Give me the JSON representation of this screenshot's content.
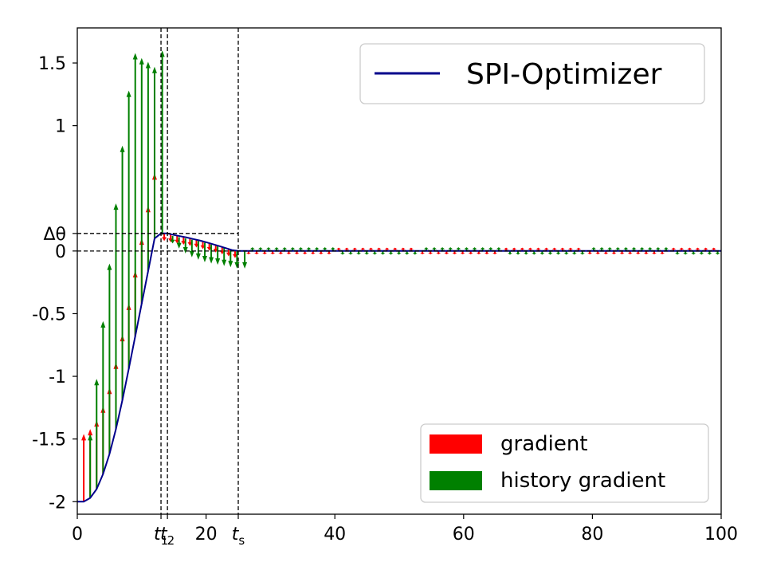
{
  "chart_data": {
    "type": "line",
    "title": "",
    "xlabel": "",
    "ylabel": "",
    "xlim": [
      0,
      100
    ],
    "ylim": [
      -2.1,
      1.78
    ],
    "x_ticks": [
      {
        "value": 0,
        "label": "0",
        "math": false
      },
      {
        "value": 13.0,
        "label": "t",
        "sub": "1",
        "math": true
      },
      {
        "value": 14.0,
        "label": "t",
        "sub": "2",
        "math": true
      },
      {
        "value": 20,
        "label": "20",
        "math": false
      },
      {
        "value": 25,
        "label": "t",
        "sub": "s",
        "math": true
      },
      {
        "value": 40,
        "label": "40",
        "math": false
      },
      {
        "value": 60,
        "label": "60",
        "math": false
      },
      {
        "value": 80,
        "label": "80",
        "math": false
      },
      {
        "value": 100,
        "label": "100",
        "math": false
      }
    ],
    "y_ticks": [
      {
        "value": -2,
        "label": "-2"
      },
      {
        "value": -1.5,
        "label": "-1.5"
      },
      {
        "value": -1,
        "label": "-1"
      },
      {
        "value": -0.5,
        "label": "-0.5"
      },
      {
        "value": 0,
        "label": "0"
      },
      {
        "value": 0.14,
        "label": "Δθ"
      },
      {
        "value": 1,
        "label": "1"
      },
      {
        "value": 1.5,
        "label": "1.5"
      }
    ],
    "vlines": [
      13.0,
      14.0,
      25
    ],
    "hlines": [
      {
        "y": 0.14,
        "x_end": 25
      },
      {
        "y": 0,
        "x_end": 100
      }
    ],
    "series": [
      {
        "name": "SPI-Optimizer",
        "color": "#00008b",
        "x": [
          0,
          1,
          2,
          3,
          4,
          5,
          6,
          7,
          8,
          9,
          10,
          11,
          12,
          13,
          14,
          15,
          16,
          17,
          18,
          19,
          20,
          21,
          22,
          23,
          24,
          25,
          26,
          30,
          40,
          50,
          60,
          70,
          80,
          90,
          100
        ],
        "y": [
          -2.0,
          -2.0,
          -1.97,
          -1.9,
          -1.78,
          -1.62,
          -1.42,
          -1.19,
          -0.94,
          -0.68,
          -0.42,
          -0.16,
          0.1,
          0.14,
          0.14,
          0.128,
          0.118,
          0.108,
          0.096,
          0.084,
          0.07,
          0.055,
          0.04,
          0.024,
          0.008,
          0.0,
          0.0,
          0.0,
          0.0,
          0.0,
          0.0,
          0.0,
          0.0,
          0.0,
          0.0
        ]
      }
    ],
    "arrows": {
      "gradient": {
        "name": "gradient",
        "color": "#ff0000",
        "x": [
          1,
          2,
          3,
          4,
          5,
          6,
          7,
          8,
          9,
          10,
          11,
          12,
          13.5,
          14.5,
          15.5,
          16.5,
          17.5,
          18.5,
          19.5,
          20.5,
          21.5,
          22.5,
          23.5,
          24.5
        ],
        "from": [
          -2.0,
          -1.97,
          -1.9,
          -1.78,
          -1.62,
          -1.42,
          -1.19,
          -0.94,
          -0.68,
          -0.42,
          -0.16,
          0.1,
          0.14,
          0.13,
          0.12,
          0.11,
          0.1,
          0.088,
          0.075,
          0.062,
          0.048,
          0.033,
          0.018,
          0.004
        ],
        "to": [
          -1.46,
          -1.42,
          -1.35,
          -1.24,
          -1.09,
          -0.89,
          -0.67,
          -0.42,
          -0.16,
          0.1,
          0.36,
          0.62,
          0.08,
          0.07,
          0.06,
          0.05,
          0.04,
          0.028,
          0.015,
          0.002,
          -0.012,
          -0.027,
          -0.042,
          -0.056
        ],
        "osc_periods": [
          [
            26,
            40,
            1
          ],
          [
            40,
            53,
            -1
          ],
          [
            53,
            66,
            1
          ],
          [
            66,
            79,
            -1
          ],
          [
            79,
            92,
            1
          ],
          [
            92,
            100,
            -1
          ]
        ],
        "osc_amplitude": 0.06
      },
      "history": {
        "name": "history gradient",
        "color": "#008000",
        "x": [
          2,
          3,
          4,
          5,
          6,
          7,
          8,
          9,
          10,
          11,
          12,
          13.2,
          14.8,
          15.8,
          16.8,
          17.8,
          18.8,
          19.8,
          20.8,
          21.8,
          22.8,
          23.8,
          24.8,
          26
        ],
        "from": [
          -1.97,
          -1.9,
          -1.78,
          -1.62,
          -1.42,
          -1.19,
          -0.94,
          -0.68,
          -0.42,
          -0.16,
          0.1,
          0.13,
          0.12,
          0.11,
          0.1,
          0.09,
          0.08,
          0.066,
          0.052,
          0.038,
          0.024,
          0.012,
          0.0,
          0.0
        ],
        "to": [
          -1.46,
          -1.02,
          -0.56,
          -0.1,
          0.38,
          0.84,
          1.28,
          1.68,
          2.06,
          2.4,
          2.72,
          1.6,
          0.06,
          0.02,
          -0.02,
          -0.05,
          -0.07,
          -0.09,
          -0.1,
          -0.11,
          -0.12,
          -0.13,
          -0.14,
          -0.14
        ],
        "peak_values": [
          -1.46,
          -1.02,
          -0.56,
          -0.1,
          0.38,
          0.84,
          1.28,
          1.58,
          1.54,
          1.51,
          1.47,
          1.6
        ]
      }
    },
    "legends": [
      {
        "position": "top-right",
        "entries": [
          {
            "label": "SPI-Optimizer",
            "color": "#00008b",
            "kind": "line"
          }
        ]
      },
      {
        "position": "bottom-right",
        "entries": [
          {
            "label": "gradient",
            "color": "#ff0000",
            "kind": "patch"
          },
          {
            "label": "history gradient",
            "color": "#008000",
            "kind": "patch"
          }
        ]
      }
    ],
    "grid": false
  }
}
